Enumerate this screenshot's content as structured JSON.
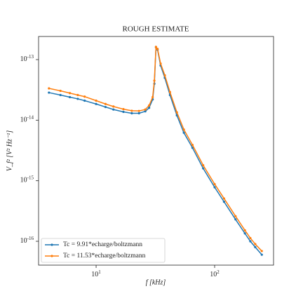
{
  "chart_data": {
    "type": "line",
    "title": "ROUGH ESTIMATE",
    "xlabel": "f [kHz]",
    "ylabel": "V_f² [V² Hz⁻¹]",
    "xscale": "log",
    "yscale": "log",
    "xlim": [
      3.27,
      314
    ],
    "ylim": [
      4.04e-17,
      2.41e-13
    ],
    "xticks": [
      {
        "value": 10,
        "label": "10^1"
      },
      {
        "value": 100,
        "label": "10^2"
      }
    ],
    "yticks": [
      {
        "value": 1e-16,
        "label": "10^-16"
      },
      {
        "value": 1e-15,
        "label": "10^-15"
      },
      {
        "value": 1e-14,
        "label": "10^-14"
      },
      {
        "value": 1e-13,
        "label": "10^-13"
      }
    ],
    "legend": "lower left",
    "x": [
      4,
      5,
      6,
      7,
      8,
      10,
      12,
      14,
      17,
      20,
      23,
      26,
      28,
      30,
      31,
      32,
      33,
      35,
      38,
      42,
      48,
      55,
      65,
      80,
      100,
      120,
      150,
      180,
      200,
      220,
      250
    ],
    "series": [
      {
        "name": "Tc = 9.91*echarge/boltzmann",
        "color": "#1f77b4",
        "values": [
          2.85e-14,
          2.6e-14,
          2.4e-14,
          2.25e-14,
          2.1e-14,
          1.85e-14,
          1.65e-14,
          1.5e-14,
          1.37e-14,
          1.3e-14,
          1.3e-14,
          1.4e-14,
          1.6e-14,
          2.2e-14,
          4e-14,
          1.6e-13,
          1.45e-13,
          8e-14,
          5e-14,
          2.6e-14,
          1.2e-14,
          6.2e-15,
          3.5e-15,
          1.6e-15,
          7.8e-16,
          4.5e-16,
          2.3e-16,
          1.35e-16,
          1e-16,
          8e-17,
          6e-17
        ]
      },
      {
        "name": "Tc = 11.53*echarge/boltzmann",
        "color": "#ff7f0e",
        "values": [
          3.35e-14,
          3.05e-14,
          2.8e-14,
          2.6e-14,
          2.45e-14,
          2.1e-14,
          1.85e-14,
          1.68e-14,
          1.52e-14,
          1.43e-14,
          1.42e-14,
          1.5e-14,
          1.75e-14,
          2.4e-14,
          4.5e-14,
          1.62e-13,
          1.5e-13,
          8.6e-14,
          5.5e-14,
          2.9e-14,
          1.35e-14,
          7e-15,
          3.9e-15,
          1.8e-15,
          8.8e-16,
          5.1e-16,
          2.6e-16,
          1.52e-16,
          1.13e-16,
          9e-17,
          6.9e-17
        ]
      }
    ]
  }
}
